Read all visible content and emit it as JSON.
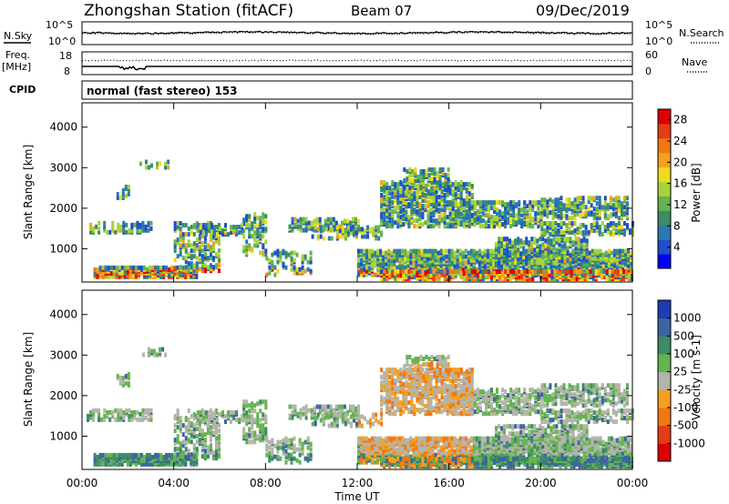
{
  "header": {
    "station": "Zhongshan Station (fitACF)",
    "beam": "Beam 07",
    "date": "09/Dec/2019"
  },
  "noise_panel": {
    "left_label": "N.Sky",
    "right_label": "N.Search",
    "ticks_left": [
      "10^5",
      "10^0"
    ],
    "ticks_right": [
      "10^5",
      "10^0"
    ]
  },
  "freq_panel": {
    "left_label_top": "Freq.",
    "left_label_bottom": "[MHz]",
    "right_label": "Nave",
    "ticks_left": [
      "18",
      "8"
    ],
    "ticks_right": [
      "60",
      "0"
    ]
  },
  "cpid": {
    "label": "CPID",
    "text": "normal (fast stereo) 153"
  },
  "chart_data": [
    {
      "type": "heatmap",
      "title": "",
      "ylabel": "Slant Range [km]",
      "xlabel": "",
      "ylim": [
        180,
        4600
      ],
      "yticks": [
        "1000",
        "2000",
        "3000",
        "4000"
      ],
      "colorbar": {
        "label": "Power [dB]",
        "ticks": [
          "4",
          "8",
          "12",
          "16",
          "20",
          "24",
          "28"
        ],
        "range": [
          0,
          30
        ],
        "colors": [
          "#0000ff",
          "#1e50c8",
          "#2a78b4",
          "#3c8c64",
          "#64b450",
          "#aad23c",
          "#f0dc1e",
          "#f5a020",
          "#f07814",
          "#e63c14",
          "#dc0000"
        ]
      }
    },
    {
      "type": "heatmap",
      "title": "",
      "ylabel": "Slant Range [km]",
      "xlabel": "Time UT",
      "ylim": [
        180,
        4600
      ],
      "yticks": [
        "1000",
        "2000",
        "3000",
        "4000"
      ],
      "xticks": [
        "00:00",
        "04:00",
        "08:00",
        "12:00",
        "16:00",
        "20:00",
        "00:00"
      ],
      "colorbar": {
        "label": "Velocity [m s-1]",
        "ticks": [
          "1000",
          "500",
          "100",
          "25",
          "-25",
          "-100",
          "-500",
          "-1000"
        ],
        "colors": [
          "#1e3cb4",
          "#3c64a0",
          "#3c8c64",
          "#64b450",
          "#b4b4aa",
          "#f5a020",
          "#f07814",
          "#e63c14",
          "#dc0000"
        ]
      }
    }
  ]
}
